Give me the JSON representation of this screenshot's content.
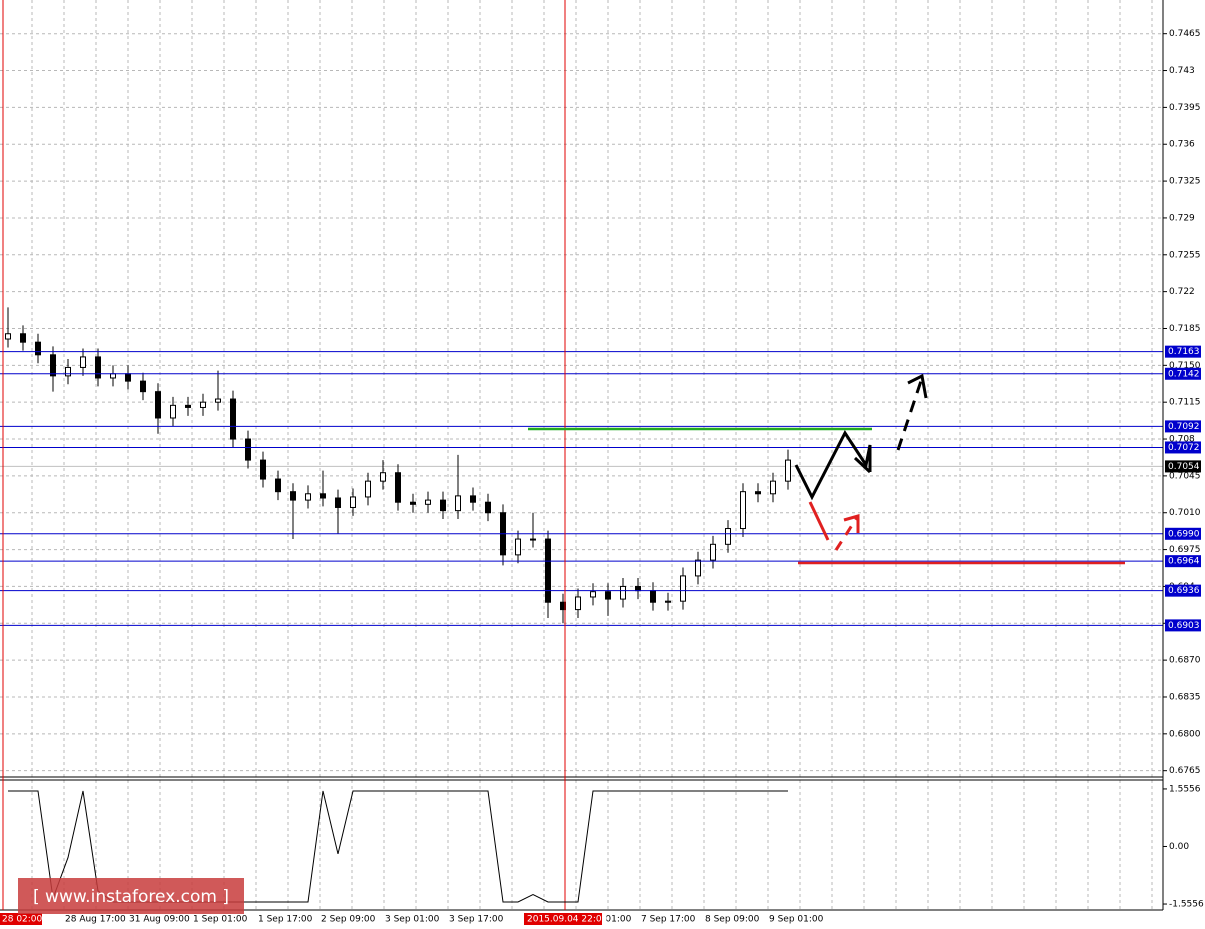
{
  "chart_data": [
    {
      "type": "candlestick",
      "open": [
        0.7175,
        0.718,
        0.7172,
        0.716,
        0.714,
        0.7148,
        0.7158,
        0.7138,
        0.7142,
        0.7135,
        0.7125,
        0.71,
        0.7112,
        0.711,
        0.7115,
        0.7118,
        0.708,
        0.706,
        0.7042,
        0.703,
        0.7022,
        0.7028,
        0.7024,
        0.7015,
        0.7025,
        0.704,
        0.7048,
        0.702,
        0.7018,
        0.7022,
        0.7012,
        0.7026,
        0.702,
        0.701,
        0.697,
        0.6985,
        0.6985,
        0.6925,
        0.6918,
        0.693,
        0.6935,
        0.6928,
        0.694,
        0.6936,
        0.6925,
        0.6926,
        0.695,
        0.6965,
        0.698,
        0.6995,
        0.703,
        0.7028,
        0.704
      ],
      "high": [
        0.7205,
        0.7188,
        0.718,
        0.7168,
        0.7156,
        0.7166,
        0.7166,
        0.715,
        0.715,
        0.7143,
        0.7133,
        0.712,
        0.712,
        0.7123,
        0.7145,
        0.7126,
        0.7088,
        0.7068,
        0.705,
        0.7038,
        0.7036,
        0.705,
        0.7032,
        0.7033,
        0.7048,
        0.706,
        0.7056,
        0.7028,
        0.703,
        0.703,
        0.7065,
        0.7034,
        0.7028,
        0.7018,
        0.6993,
        0.701,
        0.6993,
        0.6933,
        0.6938,
        0.6943,
        0.6943,
        0.6948,
        0.6948,
        0.6944,
        0.6934,
        0.6958,
        0.6973,
        0.6988,
        0.7003,
        0.7038,
        0.7038,
        0.7048,
        0.707
      ],
      "low": [
        0.7167,
        0.7164,
        0.7152,
        0.7125,
        0.7132,
        0.714,
        0.713,
        0.713,
        0.7127,
        0.7117,
        0.7085,
        0.7092,
        0.7102,
        0.7102,
        0.7107,
        0.7072,
        0.7052,
        0.7034,
        0.7022,
        0.6985,
        0.7014,
        0.7016,
        0.699,
        0.7007,
        0.7017,
        0.7032,
        0.7012,
        0.701,
        0.701,
        0.7004,
        0.7004,
        0.7012,
        0.7002,
        0.696,
        0.6962,
        0.6977,
        0.691,
        0.6905,
        0.691,
        0.6922,
        0.6912,
        0.692,
        0.6928,
        0.6917,
        0.6917,
        0.6918,
        0.6942,
        0.6957,
        0.6972,
        0.6987,
        0.702,
        0.702,
        0.7032
      ],
      "close": [
        0.718,
        0.7172,
        0.716,
        0.714,
        0.7148,
        0.7158,
        0.7138,
        0.7142,
        0.7135,
        0.7125,
        0.71,
        0.7112,
        0.711,
        0.7115,
        0.7118,
        0.708,
        0.706,
        0.7042,
        0.703,
        0.7022,
        0.7028,
        0.7024,
        0.7015,
        0.7025,
        0.704,
        0.7048,
        0.702,
        0.7018,
        0.7022,
        0.7012,
        0.7026,
        0.702,
        0.701,
        0.697,
        0.6985,
        0.6985,
        0.6925,
        0.6918,
        0.693,
        0.6935,
        0.6928,
        0.694,
        0.6936,
        0.6925,
        0.6926,
        0.695,
        0.6965,
        0.698,
        0.6995,
        0.703,
        0.7028,
        0.704,
        0.706
      ],
      "up_color": "#ffffff",
      "down_color": "#000000",
      "ylim": [
        0.6759,
        0.7497
      ],
      "yticks": [
        0.7465,
        0.743,
        0.7395,
        0.736,
        0.7325,
        0.729,
        0.7255,
        0.722,
        0.7185,
        {
          "value": 0.715,
          "label": "0.7150"
        },
        0.7115,
        0.708,
        0.7045,
        {
          "value": 0.701,
          "label": "0.7010"
        },
        0.6975,
        0.694,
        0.6905,
        {
          "value": 0.687,
          "label": "0.6870"
        },
        0.6835,
        {
          "value": 0.68,
          "label": "0.6800"
        },
        0.6765
      ],
      "grid": true,
      "levels": [
        0.7163,
        0.7142,
        0.7092,
        0.7072,
        {
          "value": 0.699,
          "label": "0.6990"
        },
        0.6964,
        0.6936,
        0.6903
      ],
      "level_color": "#0000cc",
      "current_price": 0.7054,
      "time_labels": [
        "28 02:00",
        "28 Aug 17:00",
        "31 Aug 09:00",
        "1 Sep 01:00",
        "1 Sep 17:00",
        "2 Sep 09:00",
        "3 Sep 01:00",
        "3 Sep 17:00",
        "7 Sep 01:00",
        "7 Sep 17:00",
        "8 Sep 09:00",
        "9 Sep 01:00"
      ],
      "crosshair_label": "2015.09.04 22:00",
      "watermark": "[  www.instaforex.com ]"
    },
    {
      "type": "line",
      "values": [
        1.5,
        1.5,
        1.5,
        -1.4,
        -0.3,
        1.5,
        -1.2,
        -1.5,
        -1.5,
        -1.5,
        -1.5,
        -1.5,
        -1.5,
        -1.5,
        -1.5,
        -1.5,
        -1.5,
        -1.5,
        -1.5,
        -1.5,
        -1.5,
        1.5,
        -0.2,
        1.5,
        1.5,
        1.5,
        1.5,
        1.5,
        1.5,
        1.5,
        1.5,
        1.5,
        1.5,
        -1.5,
        -1.5,
        -1.3,
        -1.5,
        -1.5,
        -1.5,
        1.5,
        1.5,
        1.5,
        1.5,
        1.5,
        1.5,
        1.5,
        1.5,
        1.5,
        1.5,
        1.5,
        1.5,
        1.5,
        1.5
      ],
      "color": "#000000",
      "ylim": [
        -1.69,
        1.77
      ],
      "yticks": [
        1.5556,
        {
          "value": 0,
          "label": "0.00"
        },
        -1.5556
      ]
    }
  ]
}
